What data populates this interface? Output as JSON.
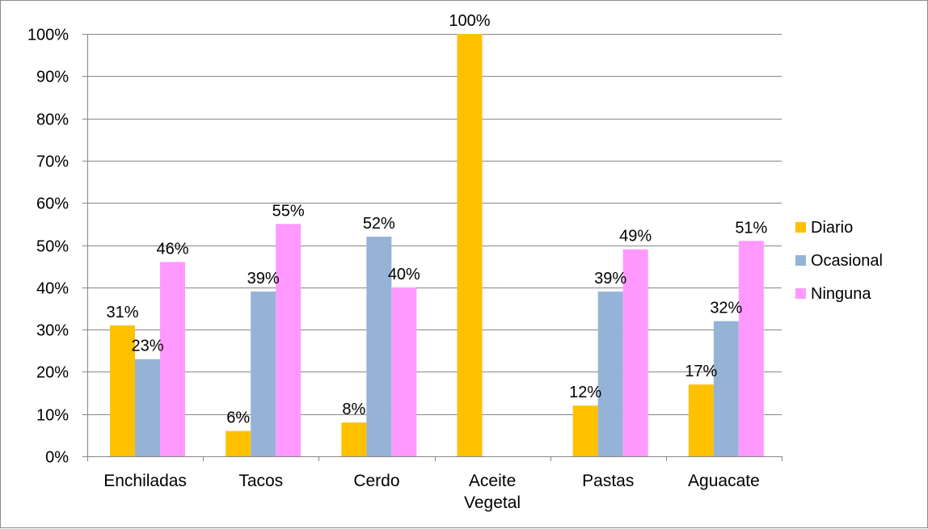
{
  "chart_data": {
    "type": "bar",
    "categories": [
      [
        "Enchiladas"
      ],
      [
        "Tacos"
      ],
      [
        "Cerdo"
      ],
      [
        "Aceite",
        "Vegetal"
      ],
      [
        "Pastas"
      ],
      [
        "Aguacate"
      ]
    ],
    "series": [
      {
        "name": "Diario",
        "color": "#ffc000",
        "values": [
          31,
          6,
          8,
          100,
          12,
          17
        ],
        "labels": [
          "31%",
          "6%",
          "8%",
          "100%",
          "12%",
          "17%"
        ]
      },
      {
        "name": "Ocasional",
        "color": "#95b3d7",
        "values": [
          23,
          39,
          52,
          null,
          39,
          32
        ],
        "labels": [
          "23%",
          "39%",
          "52%",
          null,
          "39%",
          "32%"
        ]
      },
      {
        "name": "Ninguna",
        "color": "#ff99ff",
        "values": [
          46,
          55,
          40,
          null,
          49,
          51
        ],
        "labels": [
          "46%",
          "55%",
          "40%",
          null,
          "49%",
          "51%"
        ]
      }
    ],
    "y_ticks": [
      "0%",
      "10%",
      "20%",
      "30%",
      "40%",
      "50%",
      "60%",
      "70%",
      "80%",
      "90%",
      "100%"
    ],
    "ylim": [
      0,
      100
    ],
    "grid": true,
    "legend_position": "right",
    "title": "",
    "xlabel": "",
    "ylabel": ""
  }
}
